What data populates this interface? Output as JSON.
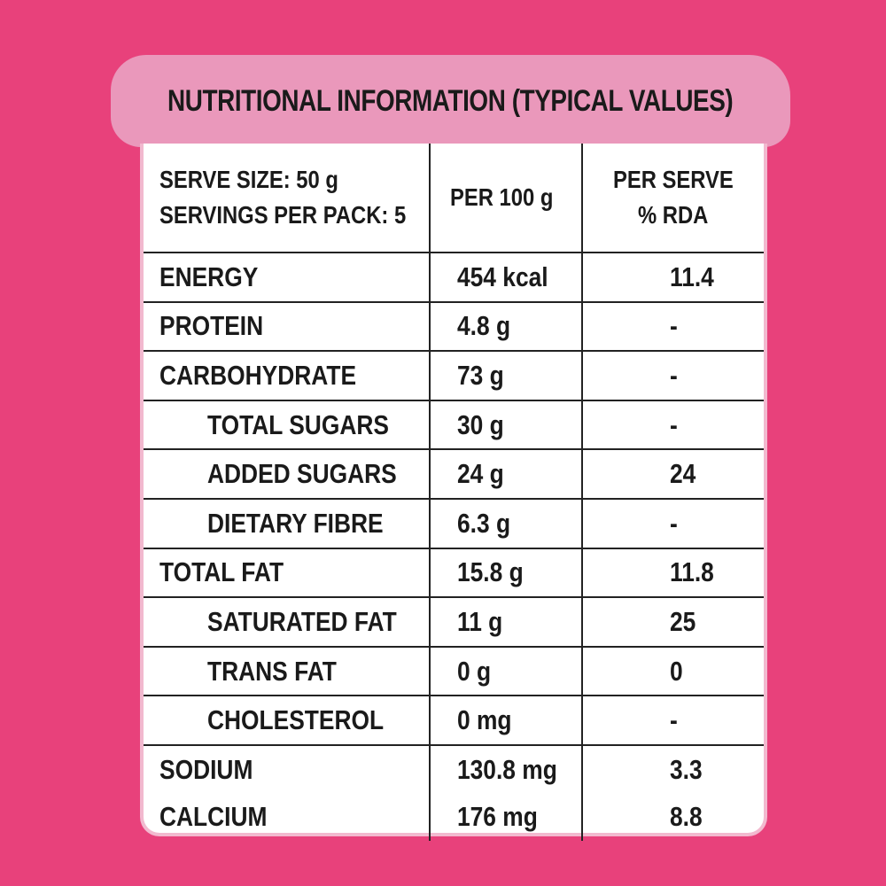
{
  "header": {
    "title": "NUTRITIONAL INFORMATION (TYPICAL VALUES)"
  },
  "table": {
    "head": [
      "SERVE SIZE: 50 g",
      "SERVINGS PER PACK: 5",
      "PER 100 g",
      "PER SERVE",
      "% RDA"
    ],
    "rows": [
      [
        "ENERGY",
        "454 kcal",
        "11.4"
      ],
      [
        "PROTEIN",
        "4.8 g",
        "-"
      ],
      [
        "CARBOHYDRATE",
        "73 g",
        "-"
      ],
      [
        "TOTAL SUGARS",
        "30 g",
        "-"
      ],
      [
        "ADDED SUGARS",
        "24 g",
        "24"
      ],
      [
        "DIETARY FIBRE",
        "6.3 g",
        "-"
      ],
      [
        "TOTAL FAT",
        "15.8 g",
        "11.8"
      ],
      [
        "SATURATED FAT",
        "11 g",
        "25"
      ],
      [
        "TRANS FAT",
        "0 g",
        "0"
      ],
      [
        "CHOLESTEROL",
        "0 mg",
        "-"
      ],
      [
        "SODIUM",
        "130.8 mg",
        "3.3"
      ],
      [
        "CALCIUM",
        "176 mg",
        "8.8"
      ]
    ]
  }
}
